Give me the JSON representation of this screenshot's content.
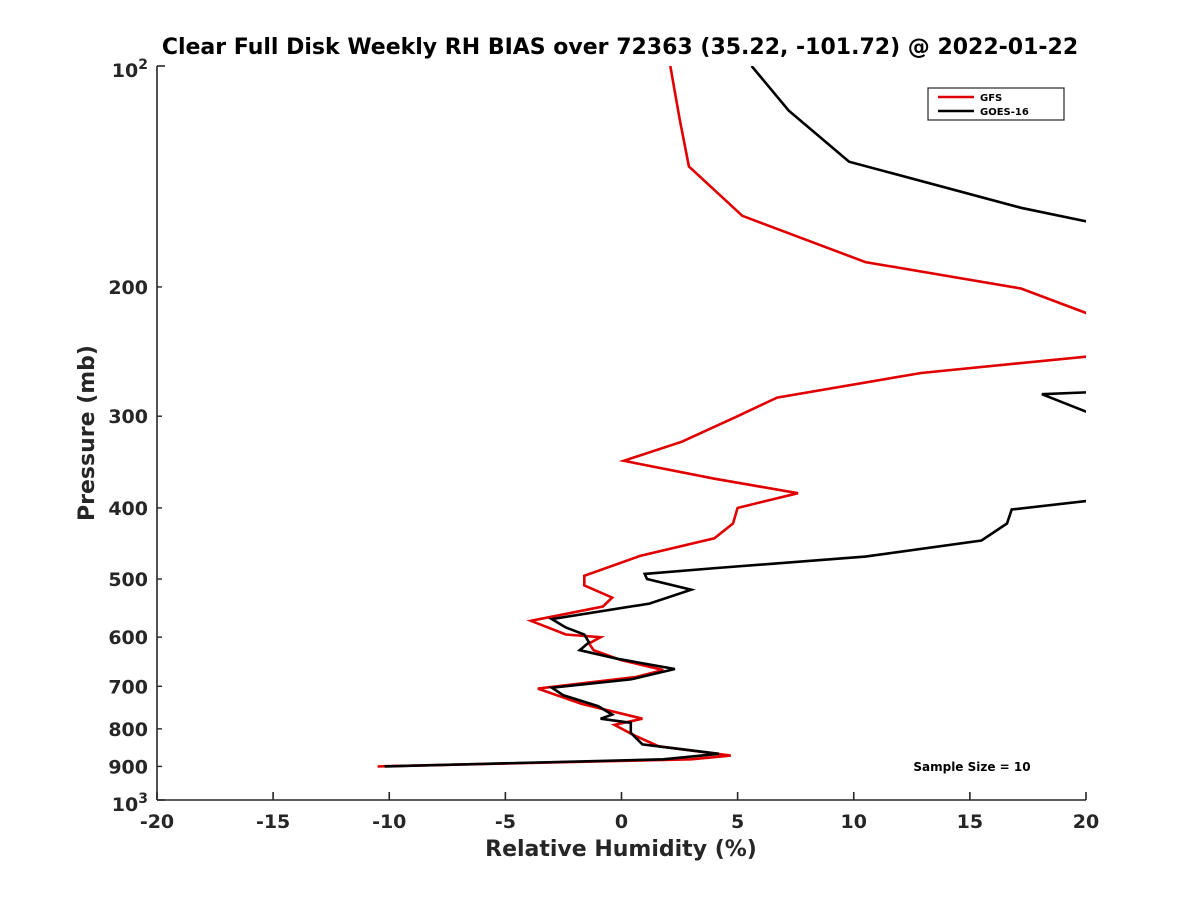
{
  "chart_data": {
    "type": "line",
    "title": "Clear Full Disk Weekly RH BIAS over 72363 (35.22, -101.72) @ 2022-01-22",
    "xlabel": "Relative Humidity (%)",
    "ylabel": "Pressure (mb)",
    "xlim": [
      -20,
      20
    ],
    "ylim": [
      100,
      1000
    ],
    "yscale": "log",
    "y_reversed": true,
    "grid": false,
    "xticks": [
      -20,
      -15,
      -10,
      -5,
      0,
      5,
      10,
      15,
      20
    ],
    "xtick_labels": [
      "-20",
      "-15",
      "-10",
      "-5",
      "0",
      "5",
      "10",
      "15",
      "20"
    ],
    "yticks": [
      200,
      300,
      400,
      500,
      600,
      700,
      800,
      900
    ],
    "ytick_labels": [
      "200",
      "300",
      "400",
      "500",
      "600",
      "700",
      "800",
      "900"
    ],
    "y_end_labels": {
      "top_base": "10",
      "top_exp": "2",
      "bottom_base": "10",
      "bottom_exp": "3"
    },
    "legend_position": "top-right",
    "annotation": "Sample Size = 10",
    "series": [
      {
        "name": "GFS",
        "color": "#e00000",
        "points": [
          [
            2.1,
            100
          ],
          [
            2.5,
            118
          ],
          [
            2.9,
            137
          ],
          [
            5.2,
            160
          ],
          [
            10.5,
            185
          ],
          [
            17.2,
            201
          ],
          [
            20.5,
            220
          ],
          [
            20.5,
            248
          ],
          [
            12.9,
            262
          ],
          [
            6.7,
            283
          ],
          [
            5.0,
            300
          ],
          [
            2.6,
            325
          ],
          [
            0.1,
            345
          ],
          [
            4.0,
            365
          ],
          [
            7.6,
            382
          ],
          [
            5.0,
            400
          ],
          [
            4.8,
            420
          ],
          [
            4.0,
            440
          ],
          [
            0.8,
            465
          ],
          [
            -1.6,
            495
          ],
          [
            -1.6,
            510
          ],
          [
            -0.4,
            530
          ],
          [
            -0.8,
            545
          ],
          [
            -3.9,
            570
          ],
          [
            -2.4,
            595
          ],
          [
            -0.9,
            600
          ],
          [
            -1.4,
            612
          ],
          [
            -1.2,
            625
          ],
          [
            0.0,
            645
          ],
          [
            1.8,
            665
          ],
          [
            0.6,
            680
          ],
          [
            -3.6,
            705
          ],
          [
            -1.7,
            740
          ],
          [
            0.9,
            775
          ],
          [
            -0.3,
            790
          ],
          [
            0.5,
            815
          ],
          [
            1.6,
            845
          ],
          [
            4.7,
            870
          ],
          [
            3.0,
            880
          ],
          [
            -10.5,
            900
          ]
        ]
      },
      {
        "name": "GOES-16",
        "color": "#000000",
        "points": [
          [
            5.6,
            100
          ],
          [
            7.2,
            115
          ],
          [
            9.8,
            135
          ],
          [
            17.2,
            156
          ],
          [
            20.5,
            164
          ],
          [
            20.5,
            278
          ],
          [
            18.1,
            280
          ],
          [
            20.5,
            300
          ],
          [
            20.5,
            390
          ],
          [
            16.8,
            402
          ],
          [
            16.6,
            420
          ],
          [
            15.5,
            443
          ],
          [
            10.5,
            466
          ],
          [
            4.1,
            483
          ],
          [
            1.0,
            492
          ],
          [
            1.1,
            500
          ],
          [
            3.0,
            517
          ],
          [
            1.2,
            540
          ],
          [
            -3.0,
            567
          ],
          [
            -2.4,
            582
          ],
          [
            -1.6,
            595
          ],
          [
            -1.4,
            610
          ],
          [
            -1.8,
            625
          ],
          [
            -0.2,
            642
          ],
          [
            2.3,
            663
          ],
          [
            0.4,
            685
          ],
          [
            -3.0,
            703
          ],
          [
            -2.5,
            720
          ],
          [
            -1.0,
            745
          ],
          [
            -0.4,
            765
          ],
          [
            -0.9,
            775
          ],
          [
            0.4,
            785
          ],
          [
            0.4,
            810
          ],
          [
            0.9,
            840
          ],
          [
            4.2,
            865
          ],
          [
            1.8,
            880
          ],
          [
            -10.2,
            900
          ]
        ]
      }
    ]
  }
}
